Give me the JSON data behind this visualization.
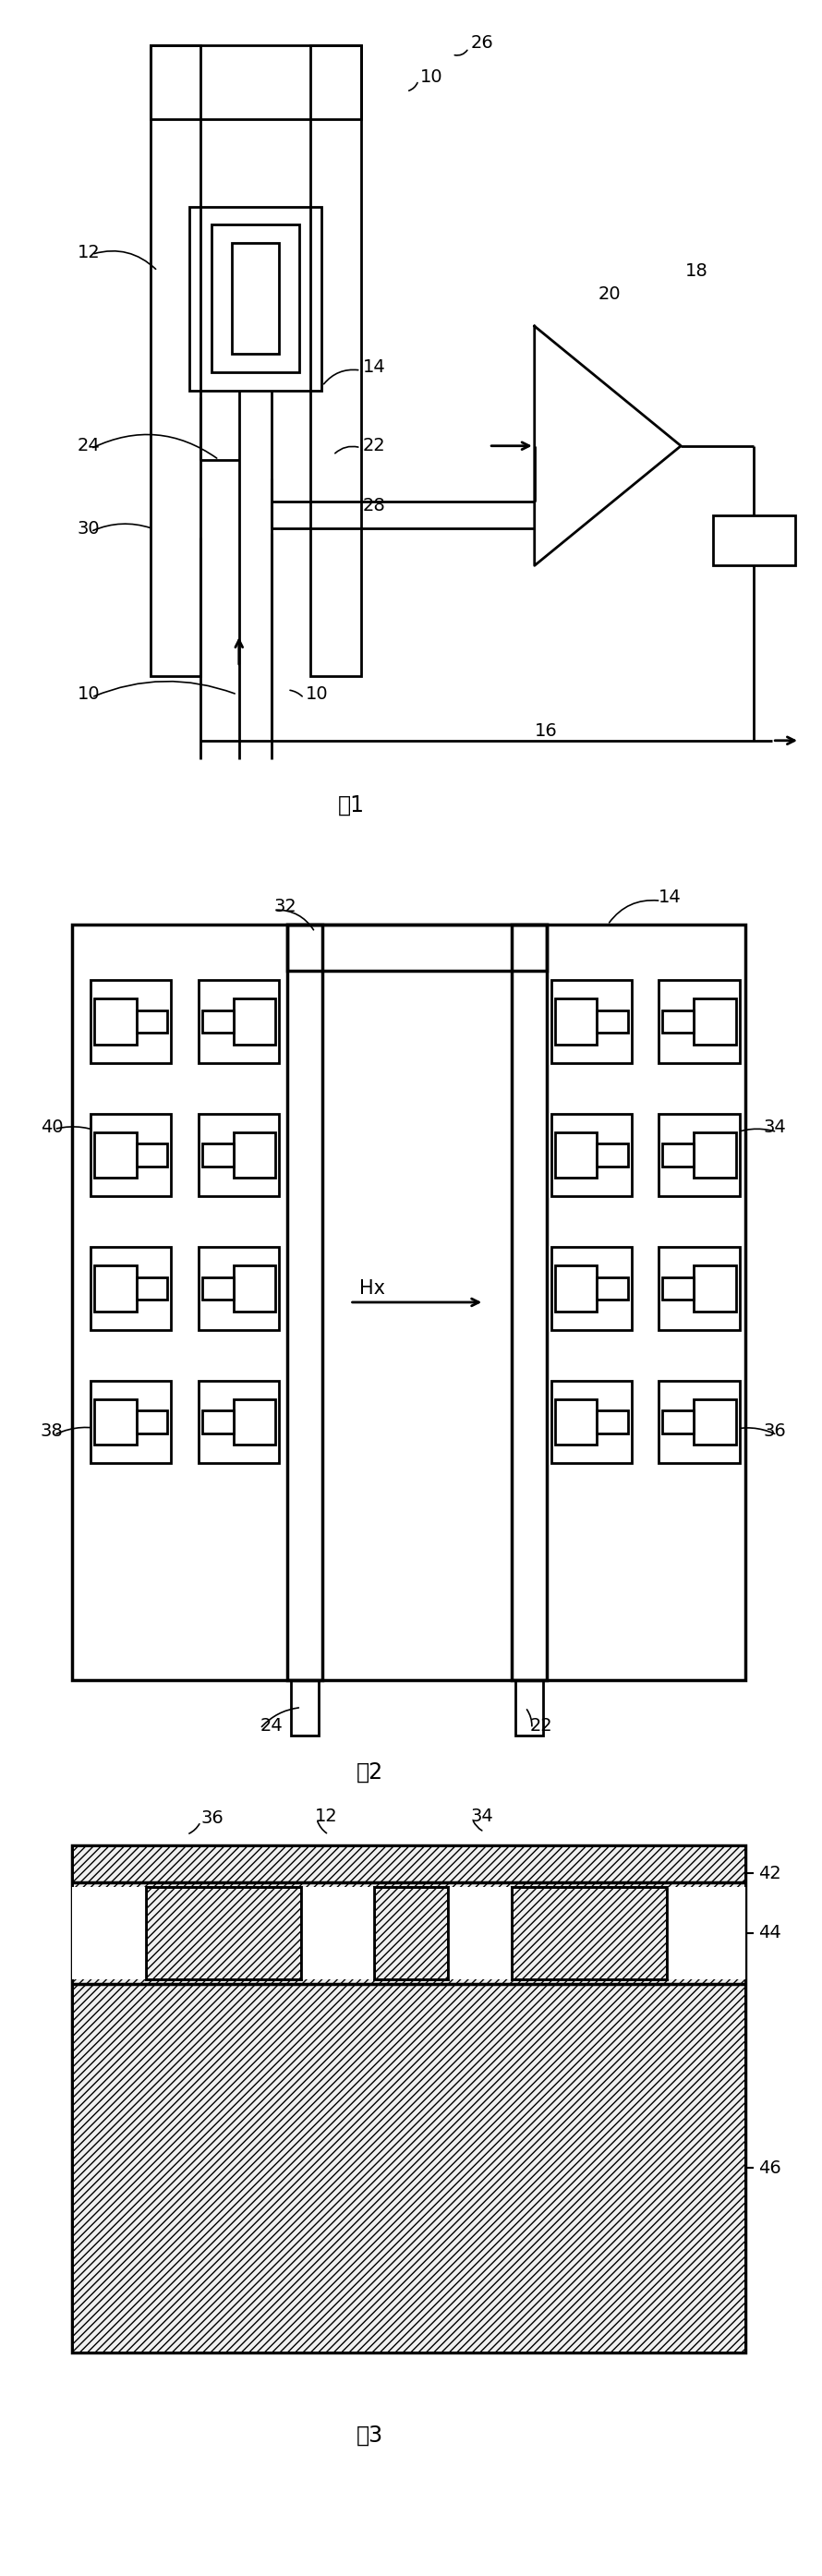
{
  "bg": "#ffffff",
  "lc": "#000000",
  "lw": 2.0,
  "fig1_title": "图1",
  "fig2_title": "图2",
  "fig3_title": "图3"
}
